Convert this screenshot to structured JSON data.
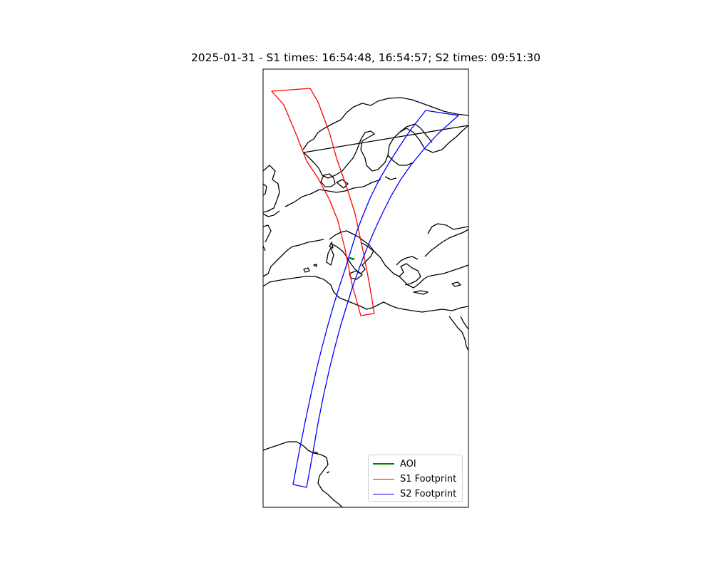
{
  "figure": {
    "title": "2025-01-31 - S1 times: 16:54:48, 16:54:57; S2 times: 09:51:30"
  },
  "legend": {
    "items": [
      {
        "label": "AOI",
        "color": "#008000",
        "width": 2.5
      },
      {
        "label": "S1 Footprint",
        "color": "#ff0000",
        "width": 1.2
      },
      {
        "label": "S2 Footprint",
        "color": "#0000ff",
        "width": 1.2
      }
    ]
  },
  "colors": {
    "coastline": "#000000",
    "aoi": "#008000",
    "s1": "#ff0000",
    "s2": "#0000ff"
  }
}
